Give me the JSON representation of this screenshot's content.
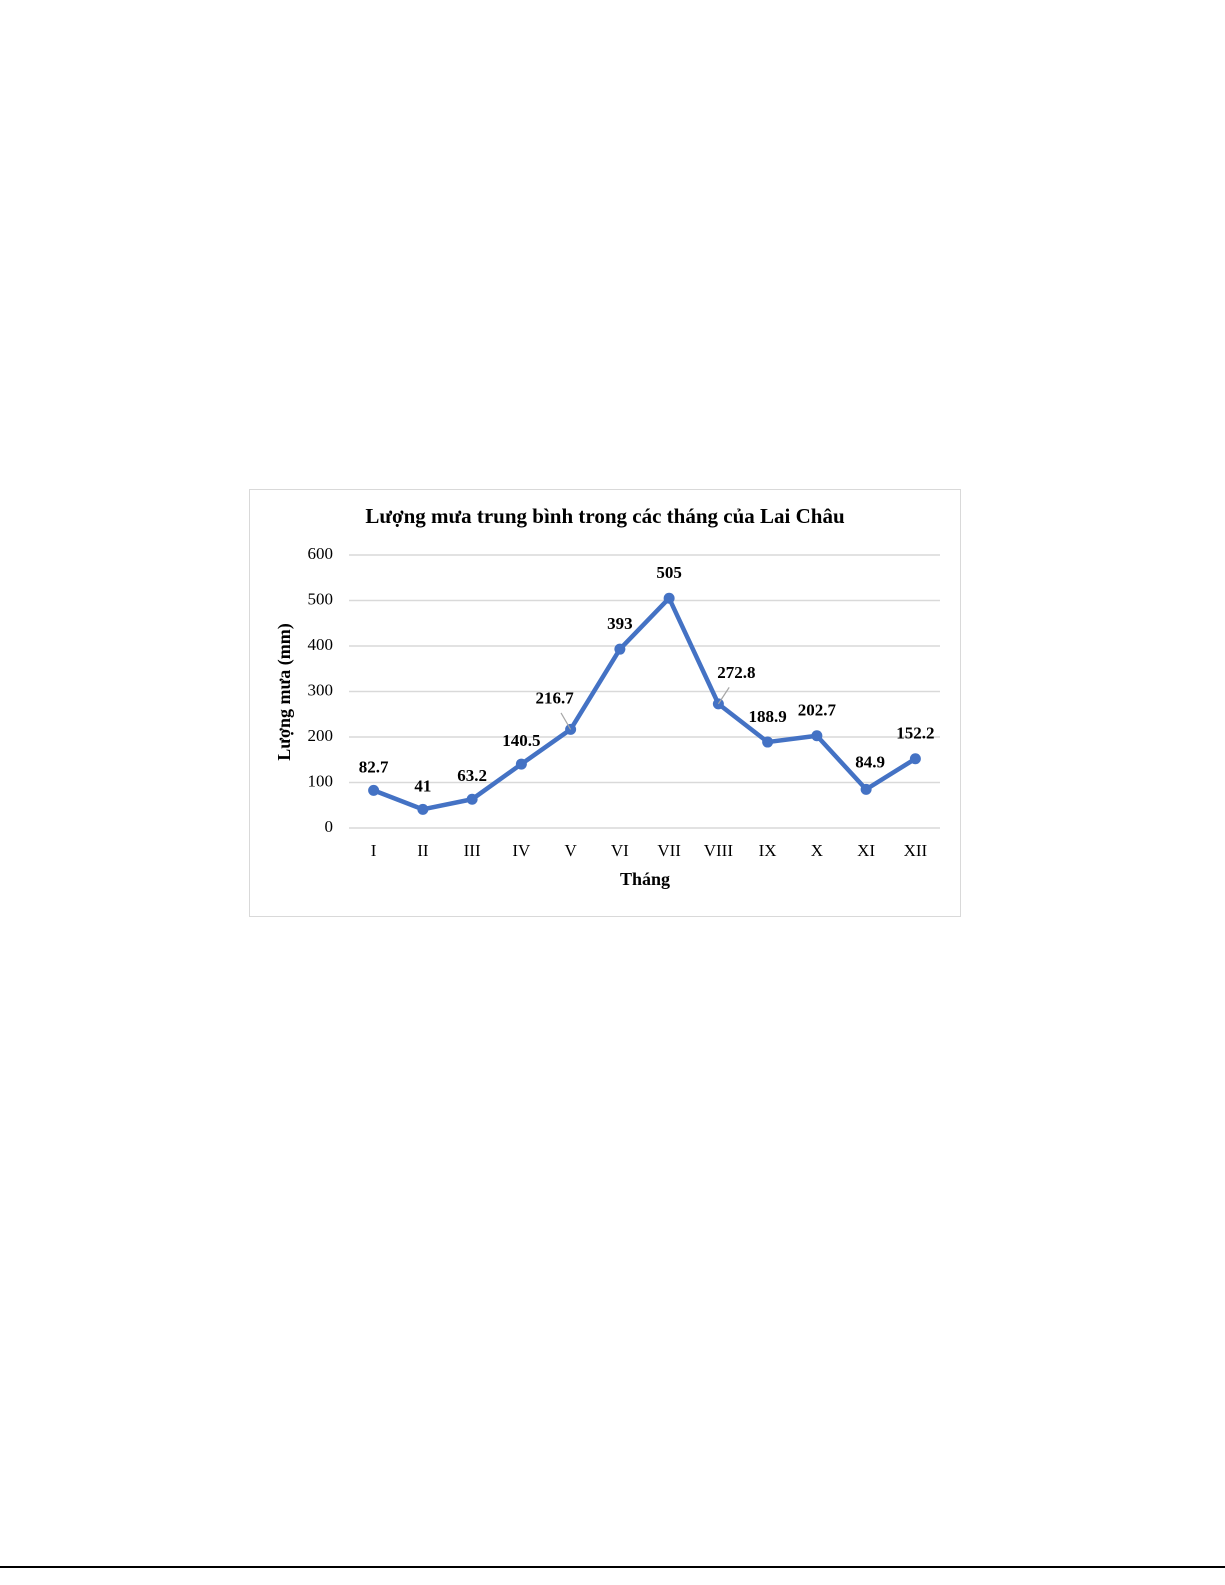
{
  "chart_data": {
    "type": "line",
    "title": "Lượng mưa trung bình trong các tháng của Lai Châu",
    "x_label": "Tháng",
    "y_label": "Lượng mưa (mm)",
    "categories": [
      "I",
      "II",
      "III",
      "IV",
      "V",
      "VI",
      "VII",
      "VIII",
      "IX",
      "X",
      "XI",
      "XII"
    ],
    "values": [
      82.7,
      41,
      63.2,
      140.5,
      216.7,
      393,
      505,
      272.8,
      188.9,
      202.7,
      84.9,
      152.2
    ],
    "color": "#4472c4",
    "ylim": [
      0,
      600
    ],
    "yticks": [
      0,
      100,
      200,
      300,
      400,
      500,
      600
    ],
    "grid": true
  }
}
